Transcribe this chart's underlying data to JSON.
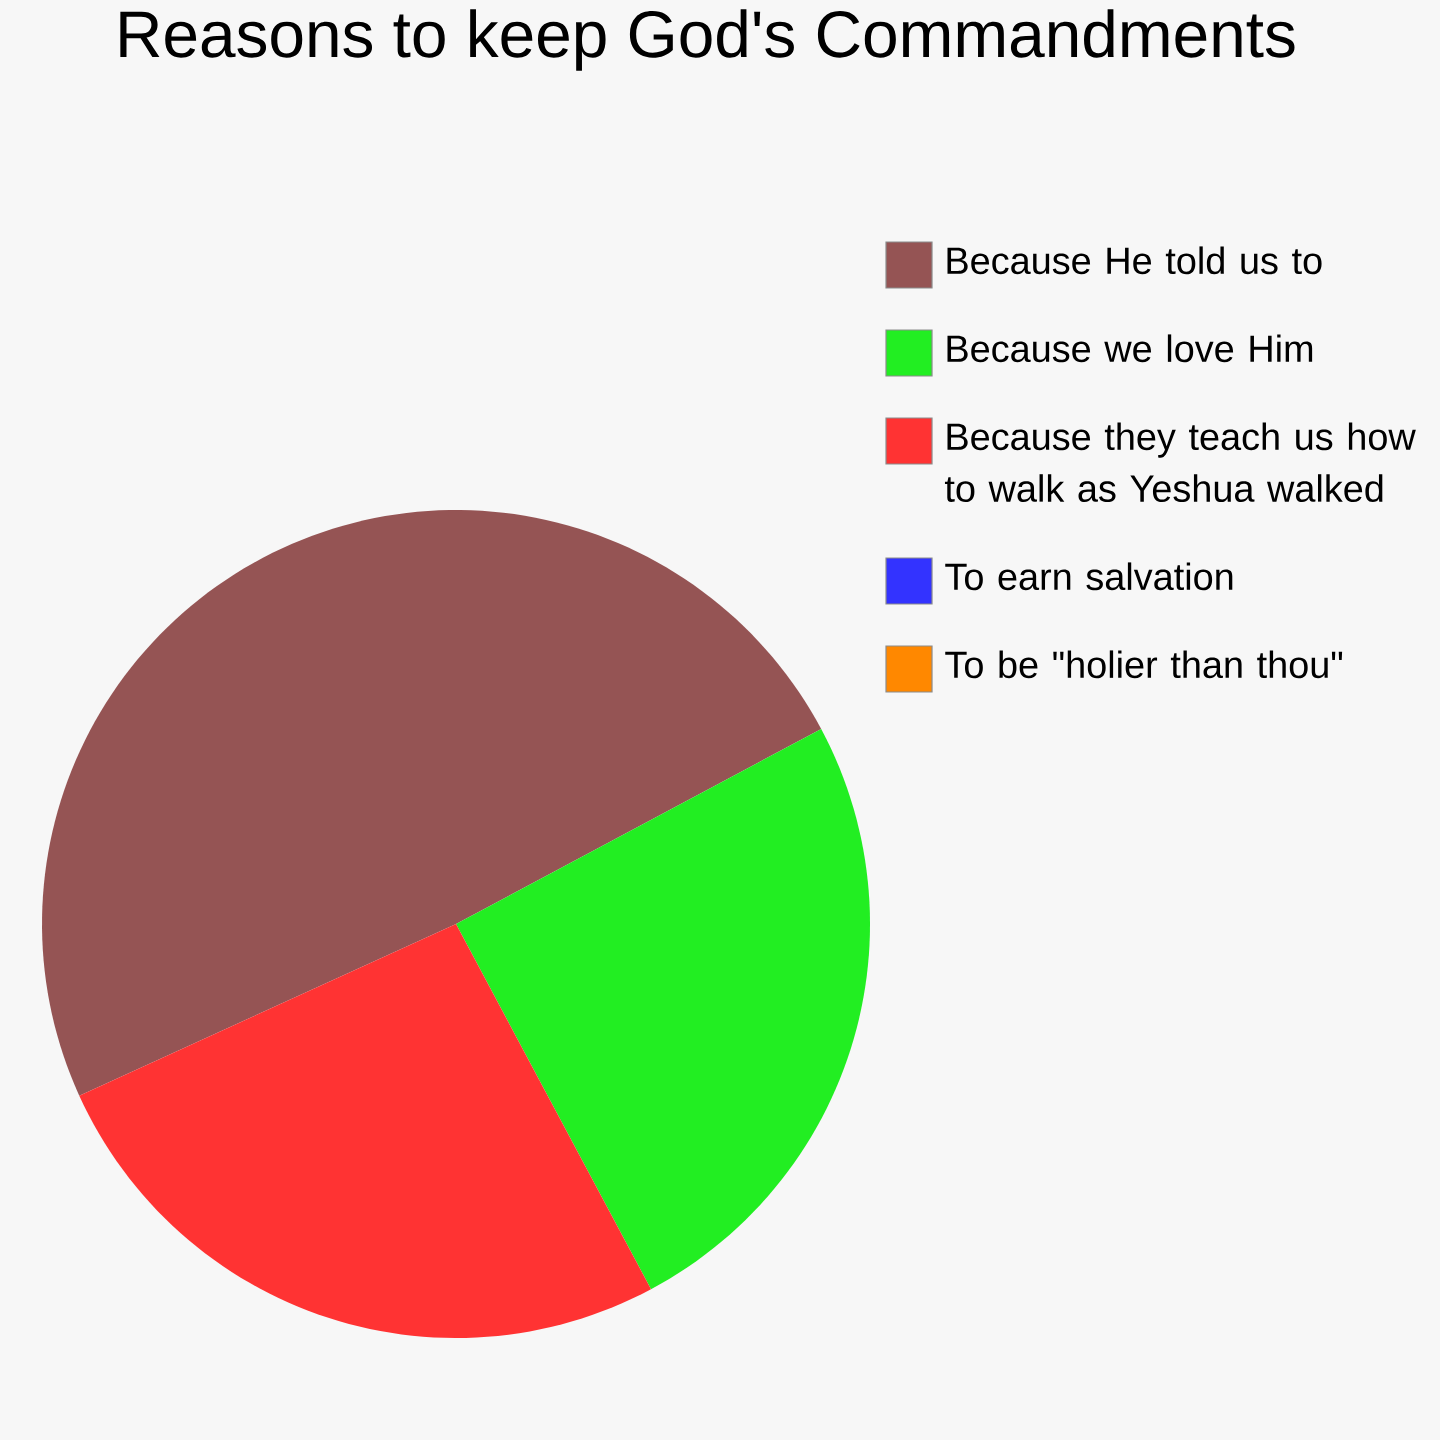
{
  "chart_data": {
    "type": "pie",
    "title": "Reasons to keep God's Commandments",
    "categories": [
      "Because He told us to",
      "Because we love Him",
      "Because they teach us how to walk as Yeshua walked",
      "To earn salvation",
      "To be \"holier than thou\""
    ],
    "values": [
      49,
      25,
      26,
      0,
      0
    ],
    "colors": [
      "#955454",
      "#22ee22",
      "#ff3333",
      "#3333ff",
      "#ff8800"
    ],
    "legend": "right"
  }
}
